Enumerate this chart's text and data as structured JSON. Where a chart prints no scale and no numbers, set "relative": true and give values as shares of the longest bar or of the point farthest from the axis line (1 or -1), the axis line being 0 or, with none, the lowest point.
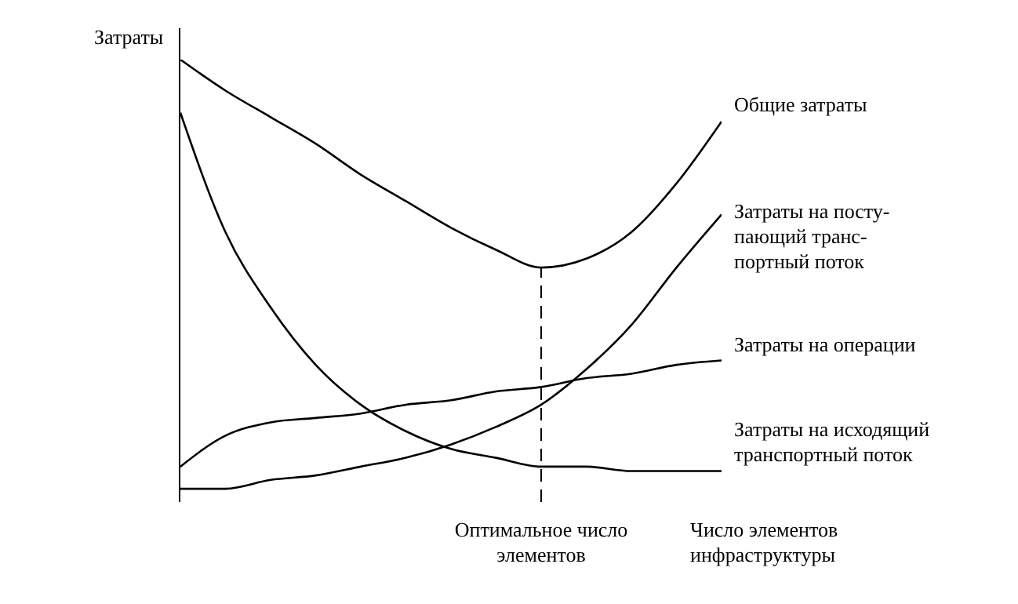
{
  "chart_data": {
    "type": "line",
    "relative": true,
    "ylabel": "Затраты",
    "xlabel": "Число элементов\nинфраструктуры",
    "categories": [
      null,
      null,
      null,
      null,
      null,
      null,
      null,
      null,
      null,
      null,
      null,
      null,
      null
    ],
    "marker": "none",
    "series": [
      {
        "name": "Общие затраты",
        "color": "#000000",
        "values": [
          1.0,
          0.93,
          0.87,
          0.81,
          0.74,
          0.68,
          0.62,
          0.57,
          0.53,
          0.55,
          0.61,
          0.72,
          0.86
        ]
      },
      {
        "name": "Затраты на посту-\nпающий транс-\nпортный поток",
        "color": "#000000",
        "values": [
          0.03,
          0.03,
          0.05,
          0.06,
          0.08,
          0.1,
          0.13,
          0.17,
          0.22,
          0.3,
          0.4,
          0.53,
          0.65
        ]
      },
      {
        "name": "Затраты на операции",
        "color": "#000000",
        "values": [
          0.08,
          0.15,
          0.18,
          0.19,
          0.2,
          0.22,
          0.23,
          0.25,
          0.26,
          0.28,
          0.29,
          0.31,
          0.32
        ]
      },
      {
        "name": "Затраты на исходящий\nтранспортный поток",
        "color": "#000000",
        "values": [
          0.88,
          0.61,
          0.44,
          0.31,
          0.22,
          0.16,
          0.12,
          0.1,
          0.08,
          0.08,
          0.07,
          0.07,
          0.07
        ]
      }
    ],
    "annotations": [
      "Оптимальное число\nэлементов"
    ]
  }
}
